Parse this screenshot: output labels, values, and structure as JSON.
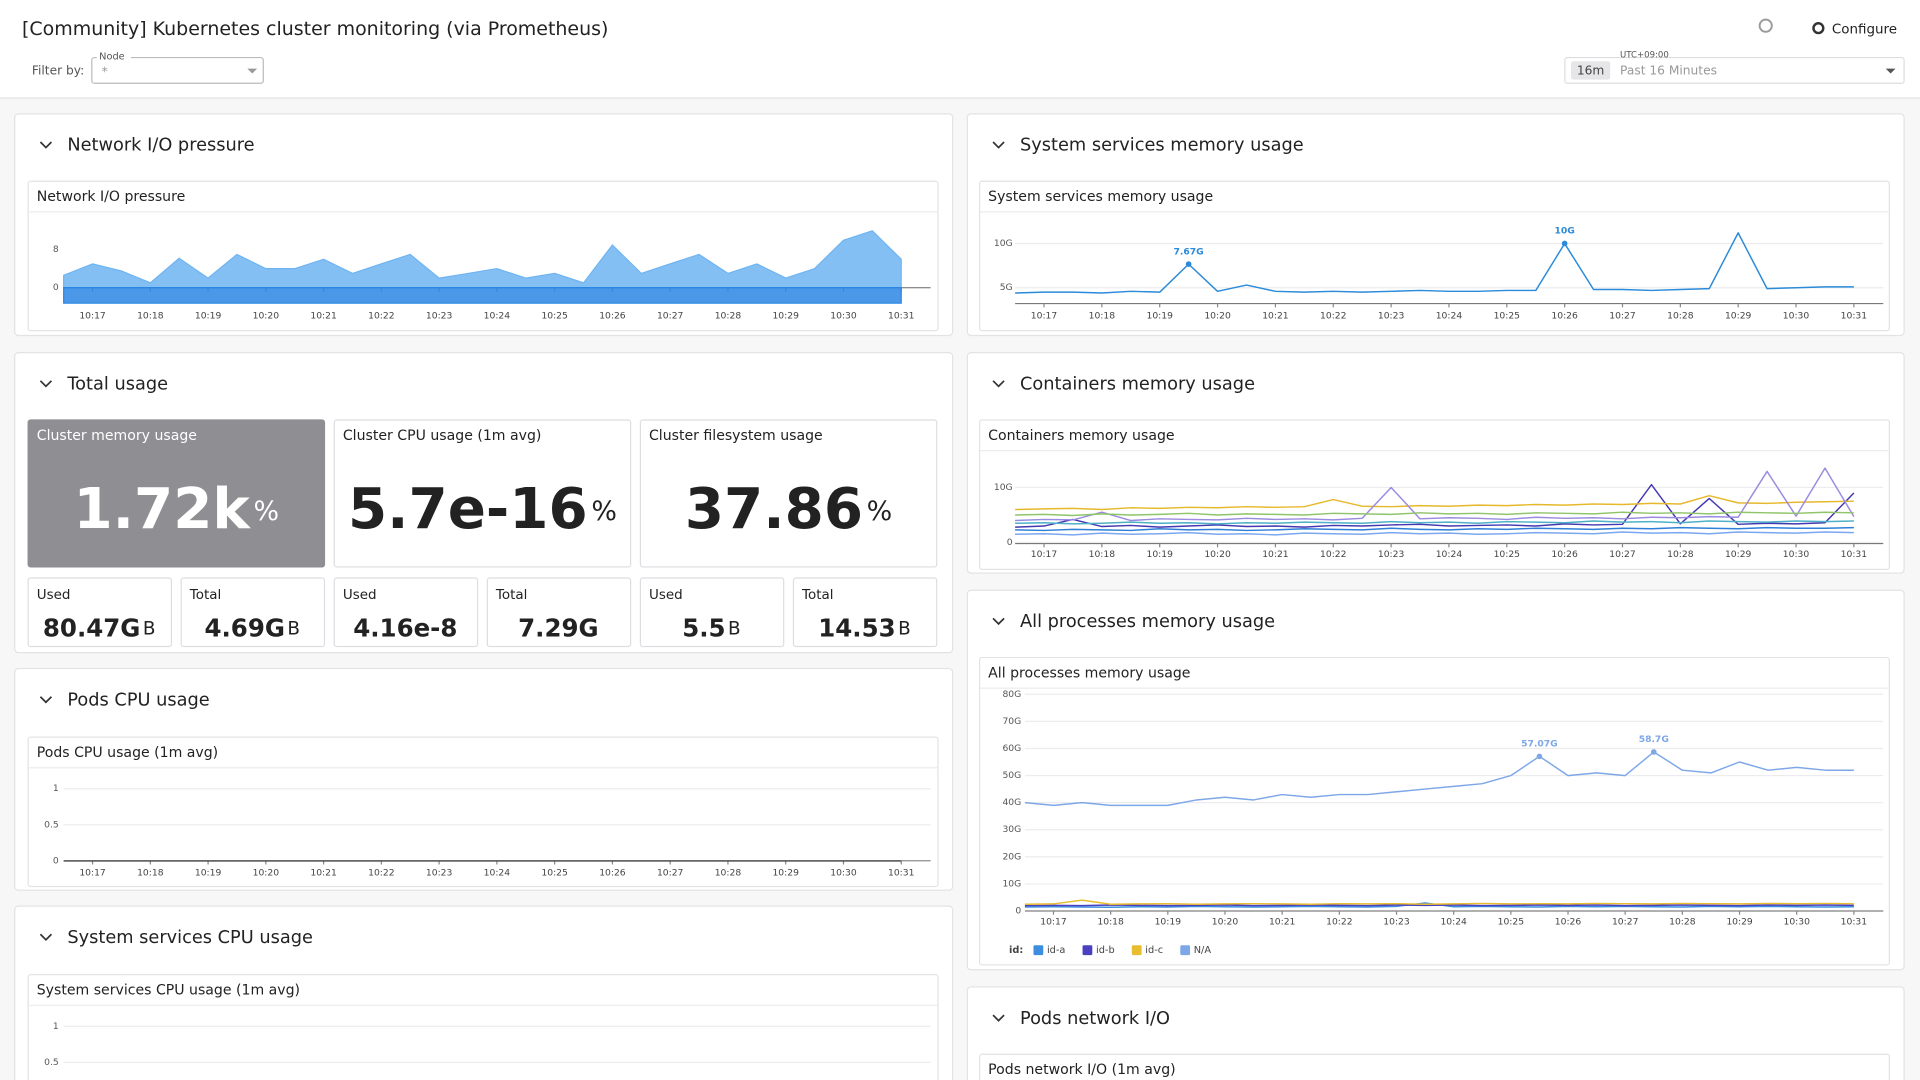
{
  "header": {
    "title": "[Community] Kubernetes cluster monitoring (via Prometheus)",
    "configure": "Configure",
    "filter_label": "Filter by:",
    "node_label": "Node",
    "node_value": "*",
    "timezone": "UTC+09:00",
    "time_badge": "16m",
    "time_range": "Past 16 Minutes"
  },
  "groups": [
    {
      "title": "Network I/O pressure",
      "chart": {
        "type": "area",
        "title": "Network I/O pressure",
        "categories": [
          null,
          "10:17",
          null,
          "10:18",
          null,
          "10:19",
          null,
          "10:20",
          null,
          "10:21",
          null,
          "10:22",
          null,
          "10:23",
          null,
          "10:24",
          null,
          "10:25",
          null,
          "10:26",
          null,
          "10:27",
          null,
          "10:28",
          null,
          "10:29",
          null,
          "10:30",
          null,
          "10:31"
        ],
        "series": [
          {
            "color": "#6fb4f2",
            "values": [
              2.6,
              5,
              3.5,
              1,
              6.2,
              2,
              7,
              4,
              4,
              6,
              3,
              5,
              7,
              2,
              3,
              4,
              2,
              3,
              1,
              9,
              3,
              5,
              7,
              3,
              5,
              2,
              4,
              10,
              12,
              6
            ]
          },
          {
            "color": "#2a86e3",
            "values": [
              -3.3,
              -3.3,
              -3.3,
              -3.3,
              -3.3,
              -3.3,
              -3.3,
              -3.3,
              -3.3,
              -3.3,
              -3.3,
              -3.3,
              -3.3,
              -3.3,
              -3.3,
              -3.3,
              -3.3,
              -3.3,
              -3.3,
              -3.3,
              -3.3,
              -3.3,
              -3.3,
              -3.3,
              -3.3,
              -3.3,
              -3.3,
              -3.3,
              -3.3,
              -3.3
            ]
          }
        ],
        "ylim": [
          -3.4,
          14.2
        ],
        "yticks": [
          0,
          8
        ],
        "grid": false
      }
    },
    {
      "title": "Total usage",
      "stats": [
        {
          "title": "Cluster memory usage",
          "value": "1.72k",
          "unit": "%",
          "background": "#8e8e93",
          "used": {
            "label": "Used",
            "value": "80.47G",
            "unit": "B"
          },
          "total": {
            "label": "Total",
            "value": "4.69G",
            "unit": "B"
          }
        },
        {
          "title": "Cluster CPU usage (1m avg)",
          "value": "5.7e-16",
          "unit": "%",
          "used": {
            "label": "Used",
            "value": "4.16e-8"
          },
          "total": {
            "label": "Total",
            "value": "7.29G"
          }
        },
        {
          "title": "Cluster filesystem usage",
          "value": "37.86",
          "unit": "%",
          "used": {
            "label": "Used",
            "value": "5.5",
            "unit": "B"
          },
          "total": {
            "label": "Total",
            "value": "14.53",
            "unit": "B"
          }
        }
      ]
    },
    {
      "title": "Pods CPU usage",
      "chart": {
        "type": "line",
        "title": "Pods CPU usage (1m avg)",
        "categories": [
          null,
          "10:17",
          null,
          "10:18",
          null,
          "10:19",
          null,
          "10:20",
          null,
          "10:21",
          null,
          "10:22",
          null,
          "10:23",
          null,
          "10:24",
          null,
          "10:25",
          null,
          "10:26",
          null,
          "10:27",
          null,
          "10:28",
          null,
          "10:29",
          null,
          "10:30",
          null,
          "10:31"
        ],
        "series": [
          {
            "color": "#444444",
            "values": [
              0,
              0,
              0,
              0,
              0,
              0,
              0,
              0,
              0,
              0,
              0,
              0,
              0,
              0,
              0,
              0,
              0,
              0,
              0,
              0,
              0,
              0,
              0,
              0,
              0,
              0,
              0,
              0,
              0,
              0
            ]
          }
        ],
        "ylim": [
          -0.05,
          1.24
        ],
        "yticks": [
          0,
          0.5,
          1
        ],
        "grid": true
      }
    },
    {
      "title": "System services CPU usage",
      "chart": {
        "type": "line",
        "title": "System services CPU usage (1m avg)",
        "ylim": [
          -0.05,
          1.24
        ],
        "yticks": [
          0.5,
          1
        ],
        "grid": true
      }
    },
    {
      "title": "System services memory usage",
      "chart": {
        "type": "line",
        "title": "System services memory usage",
        "categories": [
          null,
          "10:17",
          null,
          "10:18",
          null,
          "10:19",
          null,
          "10:20",
          null,
          "10:21",
          null,
          "10:22",
          null,
          "10:23",
          null,
          "10:24",
          null,
          "10:25",
          null,
          "10:26",
          null,
          "10:27",
          null,
          "10:28",
          null,
          "10:29",
          null,
          "10:30",
          null,
          "10:31"
        ],
        "series": [
          {
            "color": "#2b8ad9",
            "values": [
              4.4,
              4.5,
              4.5,
              4.4,
              4.6,
              4.5,
              7.67,
              4.6,
              5.3,
              4.6,
              4.5,
              4.6,
              4.5,
              4.6,
              4.7,
              4.6,
              4.6,
              4.7,
              4.7,
              10,
              4.8,
              4.8,
              4.7,
              4.8,
              4.9,
              11.2,
              4.9,
              5,
              5.1,
              5.1
            ],
            "value_labels": [
              null,
              null,
              null,
              null,
              null,
              null,
              "7.67G",
              null,
              null,
              null,
              null,
              null,
              null,
              null,
              null,
              null,
              null,
              null,
              null,
              "10G",
              null,
              null,
              null,
              null,
              null,
              null,
              null,
              null,
              null,
              null
            ]
          }
        ],
        "ylim": [
          3.2,
          13.3
        ],
        "yticks": [
          {
            "value": 5,
            "label": "5G"
          },
          {
            "value": 10,
            "label": "10G"
          }
        ],
        "grid": true
      }
    },
    {
      "title": "Containers memory usage",
      "chart": {
        "type": "line",
        "title": "Containers memory usage",
        "categories": [
          null,
          "10:17",
          null,
          "10:18",
          null,
          "10:19",
          null,
          "10:20",
          null,
          "10:21",
          null,
          "10:22",
          null,
          "10:23",
          null,
          "10:24",
          null,
          "10:25",
          null,
          "10:26",
          null,
          "10:27",
          null,
          "10:28",
          null,
          "10:29",
          null,
          "10:30",
          null,
          "10:31"
        ],
        "series": [
          {
            "color": "#2f7fd8",
            "values": [
              2.3,
              2.2,
              2.4,
              2.3,
              2.2,
              2.5,
              2.3,
              2.4,
              2.2,
              2.3,
              2.5,
              2.4,
              2.3,
              2.6,
              2.4,
              2.3,
              2.5,
              2.4,
              2.6,
              2.5,
              2.4,
              2.6,
              2.5,
              2.7,
              2.6,
              2.5,
              2.7,
              2.6,
              2.6,
              2.7
            ]
          },
          {
            "color": "#4338b0",
            "values": [
              2.8,
              3,
              4.2,
              2.9,
              3.1,
              2.8,
              3,
              3.2,
              2.9,
              3,
              2.8,
              3.1,
              3,
              3.2,
              3.3,
              3,
              3.1,
              3.2,
              3,
              3.4,
              3.2,
              3.3,
              10.5,
              3.4,
              8,
              3.3,
              3.5,
              3.4,
              3.6,
              9
            ]
          },
          {
            "color": "#e6b92c",
            "values": [
              6,
              6.1,
              6.2,
              6,
              6.3,
              6.2,
              6.4,
              6.3,
              6.5,
              6.4,
              6.5,
              7.8,
              6.6,
              6.5,
              6.7,
              6.6,
              6.8,
              6.7,
              6.9,
              6.8,
              7,
              6.9,
              7.1,
              7,
              8.5,
              7.2,
              7.1,
              7.3,
              7.4,
              7.5
            ]
          },
          {
            "color": "#9a8be0",
            "values": [
              4,
              4.2,
              4.1,
              5.5,
              4,
              4.3,
              4.2,
              4.1,
              4.4,
              4.2,
              4.3,
              4.1,
              4.4,
              10,
              4.3,
              4.5,
              4.4,
              4.2,
              4.6,
              4.4,
              4.5,
              4.3,
              4.6,
              4.5,
              4.7,
              4.6,
              12.9,
              4.8,
              13.5,
              4.7
            ]
          },
          {
            "color": "#4fb0c8",
            "values": [
              3.5,
              3.6,
              3.4,
              3.5,
              3.7,
              3.5,
              3.6,
              3.4,
              3.6,
              3.5,
              3.7,
              3.6,
              3.5,
              3.8,
              3.6,
              3.7,
              3.5,
              3.8,
              3.7,
              3.6,
              3.9,
              3.7,
              3.8,
              3.6,
              3.9,
              3.8,
              3.7,
              3.9,
              3.8,
              3.9
            ]
          },
          {
            "color": "#7aa8f0",
            "values": [
              1.5,
              1.6,
              1.4,
              1.7,
              1.5,
              1.6,
              1.8,
              1.5,
              1.6,
              1.4,
              1.7,
              1.6,
              1.5,
              1.8,
              1.6,
              1.7,
              1.5,
              1.6,
              1.8,
              1.7,
              1.6,
              1.9,
              1.7,
              1.8,
              1.6,
              1.9,
              1.8,
              1.7,
              1.9,
              1.8
            ]
          },
          {
            "color": "#8fc46a",
            "values": [
              5,
              5.1,
              4.9,
              5.2,
              5,
              5.1,
              5.3,
              5,
              5.2,
              5.1,
              5,
              5.3,
              5.2,
              5.1,
              5.4,
              5.2,
              5.3,
              5.1,
              5.4,
              5.3,
              5.2,
              5.5,
              5.3,
              5.4,
              5.2,
              5.5,
              5.4,
              5.3,
              5.5,
              5.4
            ]
          }
        ],
        "ylim": [
          -1.1,
          15.8
        ],
        "yticks": [
          0,
          {
            "value": 10,
            "label": "10G"
          }
        ],
        "grid": true
      }
    },
    {
      "title": "All processes memory usage",
      "chart": {
        "type": "line",
        "title": "All processes memory usage",
        "categories": [
          null,
          "10:17",
          null,
          "10:18",
          null,
          "10:19",
          null,
          "10:20",
          null,
          "10:21",
          null,
          "10:22",
          null,
          "10:23",
          null,
          "10:24",
          null,
          "10:25",
          null,
          "10:26",
          null,
          "10:27",
          null,
          "10:28",
          null,
          "10:29",
          null,
          "10:30",
          null,
          "10:31"
        ],
        "legend_title": "id:",
        "series": [
          {
            "name": "id-a",
            "color": "#3c8fe0",
            "values": [
              1.5,
              1.6,
              1.5,
              1.4,
              1.6,
              1.5,
              1.7,
              1.6,
              1.5,
              1.6,
              1.7,
              1.6,
              1.5,
              1.7,
              3,
              1.6,
              1.7,
              1.6,
              1.5,
              1.7,
              1.6,
              1.7,
              1.6,
              1.5,
              1.7,
              1.6,
              1.7,
              1.6,
              1.5,
              1.6
            ]
          },
          {
            "name": "id-b",
            "color": "#4a40c0",
            "values": [
              2,
              2.1,
              2,
              2.2,
              2.1,
              2,
              2.1,
              2.2,
              2,
              2.1,
              2.2,
              2.1,
              2,
              2.2,
              2.1,
              2.2,
              2,
              2.1,
              2.2,
              2.1,
              2.2,
              2,
              2.1,
              2.2,
              2.1,
              2,
              2.2,
              2.1,
              2.2,
              2.1
            ]
          },
          {
            "name": "id-c",
            "color": "#e8bd30",
            "values": [
              2.5,
              2.6,
              4,
              2.5,
              2.6,
              2.7,
              2.5,
              2.6,
              2.7,
              2.6,
              2.5,
              2.7,
              2.6,
              2.7,
              2.5,
              2.6,
              2.8,
              2.6,
              2.7,
              2.6,
              2.8,
              2.7,
              2.6,
              2.8,
              2.7,
              2.6,
              2.8,
              2.7,
              2.8,
              2.7
            ]
          },
          {
            "name": "N/A",
            "color": "#7ea7e8",
            "values": [
              40,
              39,
              40,
              39,
              39,
              39,
              41,
              42,
              41,
              43,
              42,
              43,
              43,
              44,
              45,
              46,
              47,
              50,
              57.07,
              50,
              51,
              50,
              58.7,
              52,
              51,
              55,
              52,
              53,
              52,
              52
            ],
            "value_labels": [
              null,
              null,
              null,
              null,
              null,
              null,
              null,
              null,
              null,
              null,
              null,
              null,
              null,
              null,
              null,
              null,
              null,
              null,
              "57.07G",
              null,
              null,
              null,
              "58.7G",
              null,
              null,
              null,
              null,
              null,
              null,
              null
            ]
          }
        ],
        "ylim": [
          0,
          80
        ],
        "yticks": [
          0,
          {
            "value": 10,
            "label": "10G"
          },
          {
            "value": 20,
            "label": "20G"
          },
          {
            "value": 30,
            "label": "30G"
          },
          {
            "value": 40,
            "label": "40G"
          },
          {
            "value": 50,
            "label": "50G"
          },
          {
            "value": 60,
            "label": "60G"
          },
          {
            "value": 70,
            "label": "70G"
          },
          {
            "value": 80,
            "label": "80G"
          }
        ],
        "grid": true
      }
    },
    {
      "title": "Pods network I/O",
      "chart": {
        "type": "line",
        "title": "Pods network I/O (1m avg)"
      }
    }
  ]
}
